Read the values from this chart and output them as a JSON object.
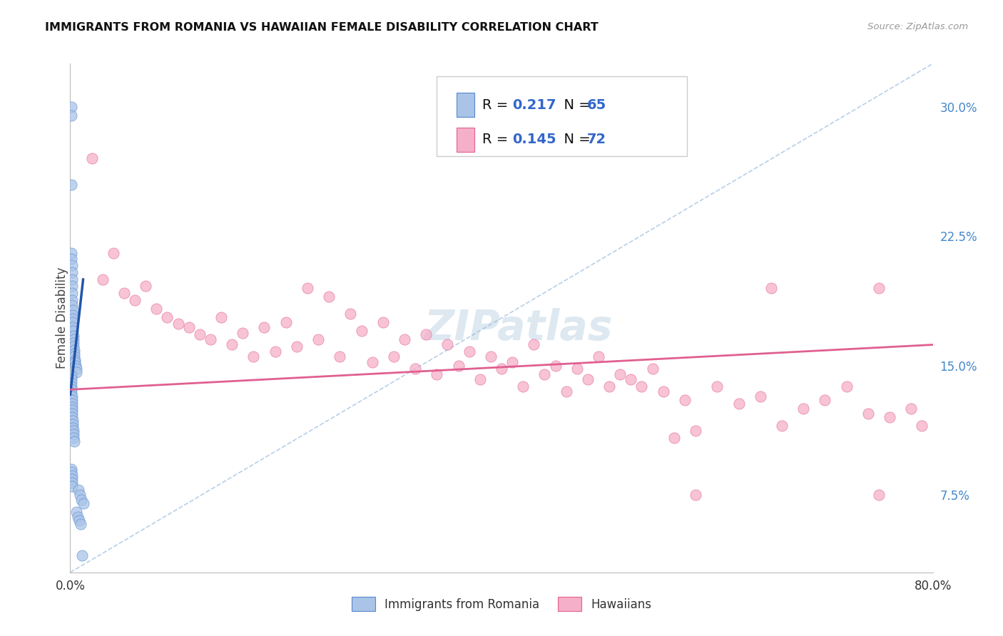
{
  "title": "IMMIGRANTS FROM ROMANIA VS HAWAIIAN FEMALE DISABILITY CORRELATION CHART",
  "source": "Source: ZipAtlas.com",
  "ylabel": "Female Disability",
  "right_yticks": [
    "7.5%",
    "15.0%",
    "22.5%",
    "30.0%"
  ],
  "right_ytick_vals": [
    0.075,
    0.15,
    0.225,
    0.3
  ],
  "romania_color": "#aac4e8",
  "hawaii_color": "#f5afc8",
  "romania_edge_color": "#5588cc",
  "hawaii_edge_color": "#e06090",
  "romania_line_color": "#2255aa",
  "hawaii_line_color": "#e06090",
  "dashed_line_color": "#99bbdd",
  "background_color": "#ffffff",
  "grid_color": "#ccddee",
  "watermark_color": "#dde8f0",
  "title_color": "#111111",
  "source_color": "#999999",
  "ylabel_color": "#444444",
  "right_tick_color": "#4488cc",
  "romania_scatter_x": [
    0.0008,
    0.001,
    0.0011,
    0.0012,
    0.0013,
    0.0014,
    0.0015,
    0.0016,
    0.0017,
    0.0018,
    0.0019,
    0.002,
    0.0021,
    0.0022,
    0.0023,
    0.0024,
    0.0025,
    0.0026,
    0.0028,
    0.003,
    0.0031,
    0.0033,
    0.0035,
    0.0038,
    0.004,
    0.0042,
    0.0045,
    0.005,
    0.0055,
    0.006,
    0.0008,
    0.0009,
    0.001,
    0.0011,
    0.0012,
    0.0013,
    0.0014,
    0.0015,
    0.0016,
    0.0017,
    0.0018,
    0.0019,
    0.002,
    0.0022,
    0.0024,
    0.0026,
    0.0028,
    0.003,
    0.0032,
    0.0035,
    0.001,
    0.0012,
    0.0014,
    0.0016,
    0.0018,
    0.002,
    0.0075,
    0.009,
    0.0105,
    0.012,
    0.006,
    0.007,
    0.008,
    0.0095,
    0.011
  ],
  "romania_scatter_y": [
    0.3,
    0.295,
    0.255,
    0.215,
    0.212,
    0.208,
    0.204,
    0.2,
    0.196,
    0.192,
    0.188,
    0.185,
    0.182,
    0.179,
    0.177,
    0.175,
    0.172,
    0.17,
    0.167,
    0.165,
    0.163,
    0.161,
    0.159,
    0.157,
    0.155,
    0.153,
    0.152,
    0.15,
    0.148,
    0.146,
    0.144,
    0.142,
    0.14,
    0.138,
    0.136,
    0.134,
    0.132,
    0.13,
    0.128,
    0.126,
    0.124,
    0.122,
    0.12,
    0.118,
    0.116,
    0.114,
    0.112,
    0.11,
    0.108,
    0.106,
    0.09,
    0.088,
    0.086,
    0.084,
    0.082,
    0.08,
    0.078,
    0.075,
    0.072,
    0.07,
    0.065,
    0.062,
    0.06,
    0.058,
    0.04
  ],
  "hawaii_scatter_x": [
    0.02,
    0.03,
    0.04,
    0.05,
    0.06,
    0.07,
    0.08,
    0.09,
    0.1,
    0.11,
    0.12,
    0.13,
    0.14,
    0.15,
    0.16,
    0.17,
    0.18,
    0.19,
    0.2,
    0.21,
    0.22,
    0.23,
    0.24,
    0.25,
    0.26,
    0.27,
    0.28,
    0.29,
    0.3,
    0.31,
    0.32,
    0.33,
    0.34,
    0.35,
    0.36,
    0.37,
    0.38,
    0.39,
    0.4,
    0.41,
    0.42,
    0.43,
    0.44,
    0.45,
    0.46,
    0.47,
    0.48,
    0.49,
    0.5,
    0.51,
    0.52,
    0.53,
    0.54,
    0.55,
    0.56,
    0.57,
    0.58,
    0.6,
    0.62,
    0.64,
    0.65,
    0.66,
    0.68,
    0.7,
    0.72,
    0.74,
    0.75,
    0.76,
    0.78,
    0.79,
    0.75,
    0.58
  ],
  "hawaii_scatter_y": [
    0.27,
    0.2,
    0.215,
    0.192,
    0.188,
    0.196,
    0.183,
    0.178,
    0.174,
    0.172,
    0.168,
    0.165,
    0.178,
    0.162,
    0.169,
    0.155,
    0.172,
    0.158,
    0.175,
    0.161,
    0.195,
    0.165,
    0.19,
    0.155,
    0.18,
    0.17,
    0.152,
    0.175,
    0.155,
    0.165,
    0.148,
    0.168,
    0.145,
    0.162,
    0.15,
    0.158,
    0.142,
    0.155,
    0.148,
    0.152,
    0.138,
    0.162,
    0.145,
    0.15,
    0.135,
    0.148,
    0.142,
    0.155,
    0.138,
    0.145,
    0.142,
    0.138,
    0.148,
    0.135,
    0.108,
    0.13,
    0.112,
    0.138,
    0.128,
    0.132,
    0.195,
    0.115,
    0.125,
    0.13,
    0.138,
    0.122,
    0.195,
    0.12,
    0.125,
    0.115,
    0.075,
    0.075
  ],
  "xlim": [
    0.0,
    0.8
  ],
  "ylim": [
    0.03,
    0.325
  ],
  "romania_line_x": [
    0.0,
    0.012
  ],
  "romania_line_y": [
    0.133,
    0.2
  ],
  "hawaii_line_x": [
    0.0,
    0.8
  ],
  "hawaii_line_y": [
    0.136,
    0.162
  ],
  "dashed_line_x": [
    0.0,
    0.8
  ],
  "dashed_line_y": [
    0.03,
    0.325
  ]
}
